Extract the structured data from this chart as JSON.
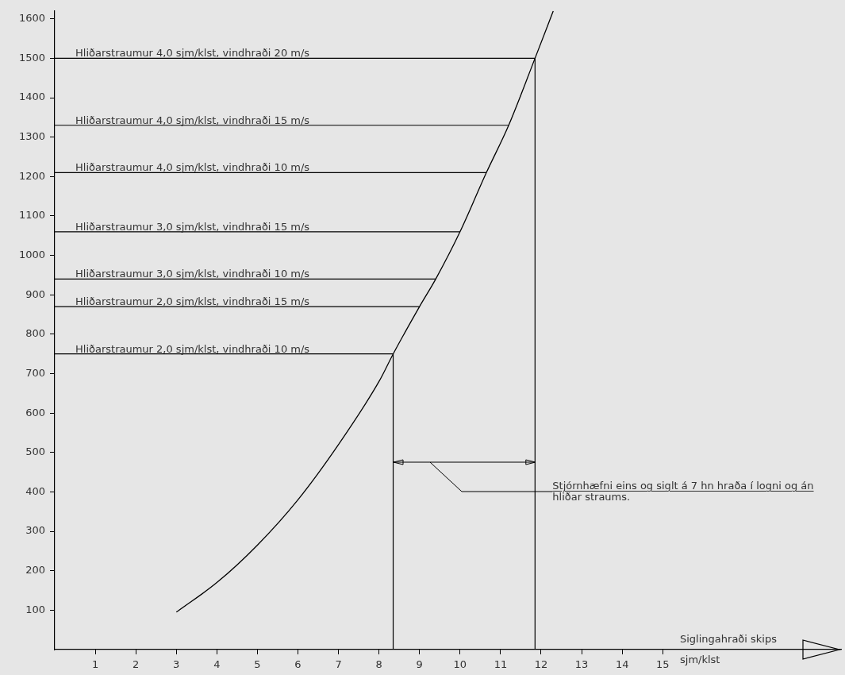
{
  "chart_data": {
    "type": "line",
    "xlabel": "Siglingahraði skips",
    "series": [
      {
        "type": "line",
        "color": "#000000",
        "x": [
          3,
          4,
          5,
          6,
          7,
          8,
          8.35,
          9,
          9.4,
          10,
          10.65,
          11.2,
          11.85,
          12.3
        ],
        "values": [
          95,
          170,
          265,
          380,
          520,
          680,
          750,
          870,
          940,
          1060,
          1210,
          1330,
          1500,
          1620
        ]
      }
    ],
    "xlim": [
      0,
      19.4
    ],
    "xticks": [
      1,
      2,
      3,
      4,
      5,
      6,
      7,
      8,
      9,
      10,
      11,
      12,
      13,
      14,
      15
    ],
    "ylim": [
      0,
      1620
    ],
    "yticks": [
      100,
      200,
      300,
      400,
      500,
      600,
      700,
      800,
      900,
      1000,
      1100,
      1200,
      1300,
      1400,
      1500,
      1600
    ],
    "ref_lines": [
      {
        "axis": "y",
        "value": 1500,
        "label": "Hliðarstraumur 4,0 sjm/klst, vindhraði 20 m/s",
        "color": "#000000"
      },
      {
        "axis": "y",
        "value": 1330,
        "label": "Hliðarstraumur 4,0 sjm/klst, vindhraði 15 m/s",
        "color": "#000000"
      },
      {
        "axis": "y",
        "value": 1210,
        "label": "Hliðarstraumur 4,0 sjm/klst, vindhraði 10 m/s",
        "color": "#000000"
      },
      {
        "axis": "y",
        "value": 1060,
        "label": "Hliðarstraumur 3,0 sjm/klst, vindhraði 15 m/s",
        "color": "#000000"
      },
      {
        "axis": "y",
        "value": 940,
        "label": "Hliðarstraumur 3,0 sjm/klst, vindhraði 10 m/s",
        "color": "#000000"
      },
      {
        "axis": "y",
        "value": 870,
        "label": "Hliðarstraumur 2,0 sjm/klst, vindhraði 15 m/s",
        "color": "#000000"
      },
      {
        "axis": "y",
        "value": 750,
        "label": "Hliðarstraumur 2,0 sjm/klst, vindhraði 10 m/s",
        "color": "#000000"
      },
      {
        "axis": "x",
        "value": 8.35,
        "color": "#000000"
      },
      {
        "axis": "x",
        "value": 11.85,
        "color": "#000000"
      }
    ],
    "annotations": [
      "Stjórnhæfni eins og siglt á 7 hn hraða í logni og án hliðar straums.",
      "sjm/klst"
    ],
    "grid": false,
    "legend": false,
    "marker": "none",
    "line_style": "solid"
  }
}
